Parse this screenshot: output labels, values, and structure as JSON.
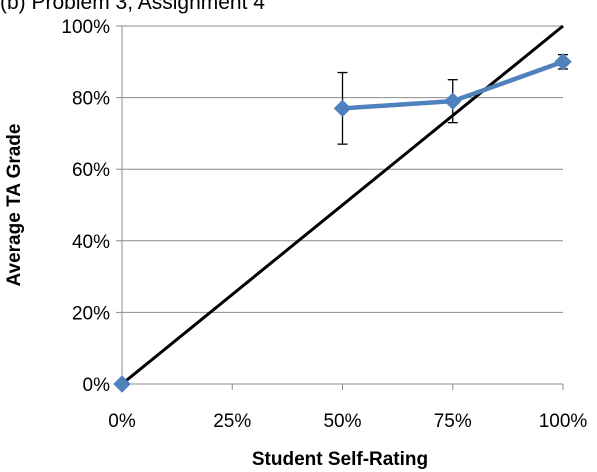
{
  "caption": "(b) Problem 3, Assignment 4",
  "chart_data": {
    "type": "line",
    "xlabel": "Student Self-Rating",
    "ylabel": "Average TA Grade",
    "xlim": [
      0,
      100
    ],
    "ylim": [
      0,
      100
    ],
    "x_ticks": [
      "0%",
      "25%",
      "50%",
      "75%",
      "100%"
    ],
    "y_ticks": [
      "0%",
      "20%",
      "40%",
      "60%",
      "80%",
      "100%"
    ],
    "grid": "horizontal",
    "series": [
      {
        "color": "#4f81bd",
        "marker": "diamond",
        "points": [
          {
            "x": 0,
            "y": 0
          },
          {
            "x": 50,
            "y": 77,
            "err_low": 67,
            "err_high": 87
          },
          {
            "x": 75,
            "y": 79,
            "err_low": 73,
            "err_high": 85
          },
          {
            "x": 100,
            "y": 90,
            "err_low": 88,
            "err_high": 92
          }
        ],
        "connect": [
          1,
          2,
          3
        ]
      }
    ],
    "reference_line": {
      "from": [
        0,
        0
      ],
      "to": [
        100,
        100
      ],
      "color": "#000000"
    }
  }
}
